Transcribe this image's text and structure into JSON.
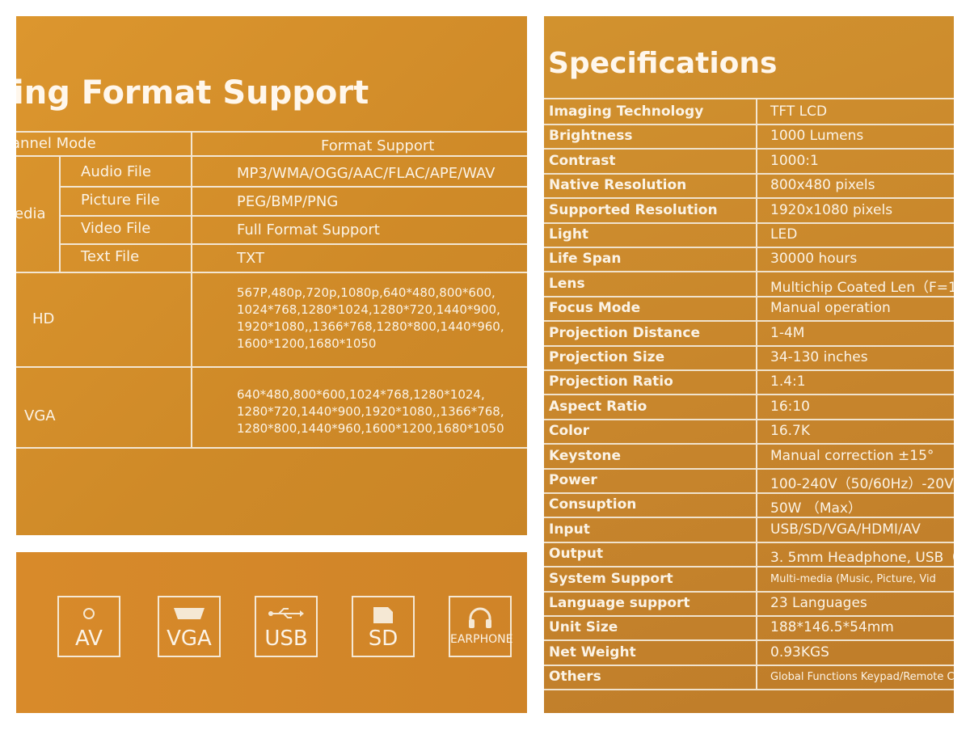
{
  "format_panel": {
    "title": "ing Format Support",
    "header": {
      "mode": "annel Mode",
      "support": "Format Support"
    },
    "media_label": "edia",
    "media_rows": [
      {
        "type": "Audio File",
        "formats": "MP3/WMA/OGG/AAC/FLAC/APE/WAV"
      },
      {
        "type": "Picture File",
        "formats": "PEG/BMP/PNG"
      },
      {
        "type": "Video File",
        "formats": "Full Format Support"
      },
      {
        "type": "Text File",
        "formats": "TXT"
      }
    ],
    "hd": {
      "label": "HD",
      "formats": "567P,480p,720p,1080p,640*480,800*600,\n1024*768,1280*1024,1280*720,1440*900,\n1920*1080,,1366*768,1280*800,1440*960,\n1600*1200,1680*1050"
    },
    "vga": {
      "label": "VGA",
      "formats": "640*480,800*600,1024*768,1280*1024,\n1280*720,1440*900,1920*1080,,1366*768,\n1280*800,1440*960,1600*1200,1680*1050"
    }
  },
  "ports_panel": {
    "ports": [
      {
        "label": "AV",
        "icon": "av-jack-icon"
      },
      {
        "label": "VGA",
        "icon": "vga-port-icon"
      },
      {
        "label": "USB",
        "icon": "usb-icon"
      },
      {
        "label": "SD",
        "icon": "sd-card-icon"
      },
      {
        "label": "EARPHONE",
        "icon": "headphones-icon"
      }
    ]
  },
  "specs_panel": {
    "title": "Specifications",
    "rows": [
      {
        "key": "Imaging Technology",
        "value": "TFT LCD"
      },
      {
        "key": "Brightness",
        "value": "1000 Lumens"
      },
      {
        "key": "Contrast",
        "value": "1000:1"
      },
      {
        "key": "Native Resolution",
        "value": "800x480 pixels"
      },
      {
        "key": "Supported Resolution",
        "value": "1920x1080 pixels"
      },
      {
        "key": "Light",
        "value": "LED"
      },
      {
        "key": "Life Span",
        "value": "30000 hours"
      },
      {
        "key": "Lens",
        "value": "Multichip Coated Len（F=1"
      },
      {
        "key": "Focus Mode",
        "value": "Manual operation"
      },
      {
        "key": "Projection Distance",
        "value": "1-4M"
      },
      {
        "key": "Projection Size",
        "value": "34-130 inches"
      },
      {
        "key": "Projection Ratio",
        "value": "1.4:1"
      },
      {
        "key": "Aspect Ratio",
        "value": "16:10"
      },
      {
        "key": "Color",
        "value": "16.7K"
      },
      {
        "key": "Keystone",
        "value": "Manual correction ±15°"
      },
      {
        "key": "Power",
        "value": "100-240V（50/60Hz）-20V"
      },
      {
        "key": "Consuption",
        "value": "50W （Max）"
      },
      {
        "key": "Input",
        "value": "USB/SD/VGA/HDMI/AV"
      },
      {
        "key": "Output",
        "value": "3. 5mm Headphone,  USB（"
      },
      {
        "key": "System Support",
        "value": "Multi-media (Music, Picture, Vid"
      },
      {
        "key": "Language support",
        "value": "23 Languages"
      },
      {
        "key": "Unit Size",
        "value": "188*146.5*54mm"
      },
      {
        "key": "Net Weight",
        "value": "0.93KGS"
      },
      {
        "key": "Others",
        "value": "Global Functions Keypad/Remote Control"
      }
    ]
  }
}
